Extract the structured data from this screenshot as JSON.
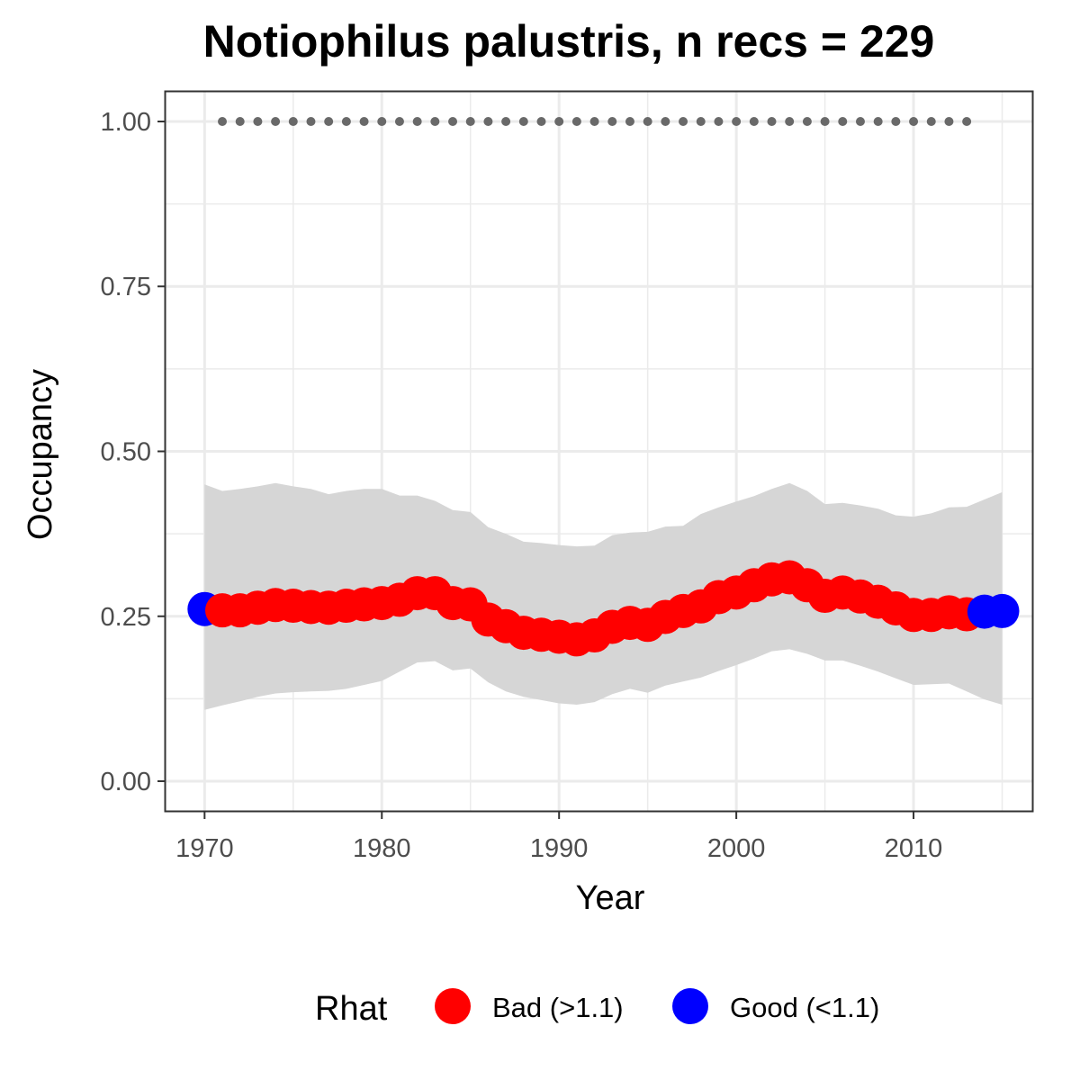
{
  "chart_data": {
    "type": "line",
    "title": "Notiophilus palustris, n recs = 229",
    "xlabel": "Year",
    "ylabel": "Occupancy",
    "xlim": [
      1967.8,
      2016.7
    ],
    "ylim": [
      -0.045,
      1.045
    ],
    "x_ticks": [
      1970,
      1980,
      1990,
      2000,
      2010
    ],
    "x_tick_labels": [
      "1970",
      "1980",
      "1990",
      "2000",
      "2010"
    ],
    "y_ticks": [
      0,
      0.25,
      0.5,
      0.75,
      1
    ],
    "y_tick_labels": [
      "0.00",
      "0.25",
      "0.50",
      "0.75",
      "1.00"
    ],
    "grid": true,
    "years": [
      1970,
      1971,
      1972,
      1973,
      1974,
      1975,
      1976,
      1977,
      1978,
      1979,
      1980,
      1981,
      1982,
      1983,
      1984,
      1985,
      1986,
      1987,
      1988,
      1989,
      1990,
      1991,
      1992,
      1993,
      1994,
      1995,
      1996,
      1997,
      1998,
      1999,
      2000,
      2001,
      2002,
      2003,
      2004,
      2005,
      2006,
      2007,
      2008,
      2009,
      2010,
      2011,
      2012,
      2013,
      2014,
      2015
    ],
    "occupancy": [
      0.261,
      0.259,
      0.259,
      0.263,
      0.267,
      0.266,
      0.264,
      0.263,
      0.266,
      0.268,
      0.27,
      0.275,
      0.285,
      0.285,
      0.27,
      0.268,
      0.245,
      0.235,
      0.225,
      0.222,
      0.219,
      0.215,
      0.221,
      0.234,
      0.24,
      0.237,
      0.249,
      0.258,
      0.265,
      0.279,
      0.286,
      0.297,
      0.306,
      0.309,
      0.297,
      0.281,
      0.286,
      0.28,
      0.272,
      0.262,
      0.252,
      0.252,
      0.256,
      0.253,
      0.257,
      0.258
    ],
    "upper": [
      0.45,
      0.44,
      0.443,
      0.447,
      0.452,
      0.447,
      0.443,
      0.435,
      0.44,
      0.443,
      0.443,
      0.433,
      0.433,
      0.425,
      0.411,
      0.408,
      0.385,
      0.375,
      0.363,
      0.361,
      0.358,
      0.356,
      0.357,
      0.373,
      0.377,
      0.378,
      0.386,
      0.387,
      0.405,
      0.415,
      0.424,
      0.432,
      0.443,
      0.452,
      0.44,
      0.42,
      0.422,
      0.418,
      0.413,
      0.403,
      0.401,
      0.406,
      0.415,
      0.416,
      0.427,
      0.438
    ],
    "lower": [
      0.108,
      0.115,
      0.121,
      0.128,
      0.133,
      0.135,
      0.136,
      0.137,
      0.14,
      0.146,
      0.152,
      0.166,
      0.18,
      0.182,
      0.168,
      0.171,
      0.15,
      0.136,
      0.128,
      0.123,
      0.118,
      0.116,
      0.12,
      0.132,
      0.14,
      0.134,
      0.145,
      0.151,
      0.157,
      0.167,
      0.176,
      0.186,
      0.197,
      0.2,
      0.193,
      0.183,
      0.183,
      0.175,
      0.166,
      0.156,
      0.146,
      0.147,
      0.148,
      0.136,
      0.124,
      0.116
    ],
    "rhat_status": [
      "good",
      "bad",
      "bad",
      "bad",
      "bad",
      "bad",
      "bad",
      "bad",
      "bad",
      "bad",
      "bad",
      "bad",
      "bad",
      "bad",
      "bad",
      "bad",
      "bad",
      "bad",
      "bad",
      "bad",
      "bad",
      "bad",
      "bad",
      "bad",
      "bad",
      "bad",
      "bad",
      "bad",
      "bad",
      "bad",
      "bad",
      "bad",
      "bad",
      "bad",
      "bad",
      "bad",
      "bad",
      "bad",
      "bad",
      "bad",
      "bad",
      "bad",
      "bad",
      "bad",
      "good",
      "good"
    ],
    "records_years": [
      1971,
      1972,
      1973,
      1974,
      1975,
      1976,
      1977,
      1978,
      1979,
      1980,
      1981,
      1982,
      1983,
      1984,
      1985,
      1986,
      1987,
      1988,
      1989,
      1990,
      1991,
      1992,
      1993,
      1994,
      1995,
      1996,
      1997,
      1998,
      1999,
      2000,
      2001,
      2002,
      2003,
      2004,
      2005,
      2006,
      2007,
      2008,
      2009,
      2010,
      2011,
      2012,
      2013
    ],
    "records_value": 1.0,
    "legend": {
      "title": "Rhat",
      "position": "bottom",
      "entries": [
        {
          "key": "bad",
          "label": "Bad (>1.1)",
          "color": "#ff0000"
        },
        {
          "key": "good",
          "label": "Good (<1.1)",
          "color": "#0000ff"
        }
      ]
    },
    "colors": {
      "bad": "#ff0000",
      "good": "#0000ff",
      "ribbon": "#d6d6d6",
      "records": "#696969",
      "grid": "#ebebeb",
      "panel_border": "#333333",
      "tick_text": "#4d4d4d"
    }
  }
}
